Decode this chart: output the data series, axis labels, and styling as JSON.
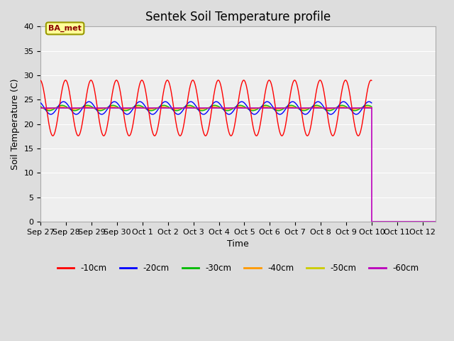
{
  "title": "Sentek Soil Temperature profile",
  "xlabel": "Time",
  "ylabel": "Soil Temperature (C)",
  "ylim": [
    0,
    40
  ],
  "annotation_text": "BA_met",
  "colors": {
    "-10cm": "#ff0000",
    "-20cm": "#0000ff",
    "-30cm": "#00bb00",
    "-40cm": "#ff9900",
    "-50cm": "#cccc00",
    "-60cm": "#bb00bb"
  },
  "legend_labels": [
    "-10cm",
    "-20cm",
    "-30cm",
    "-40cm",
    "-50cm",
    "-60cm"
  ],
  "bg_color": "#dddddd",
  "plot_bg_color": "#eeeeee",
  "title_fontsize": 12,
  "axis_fontsize": 9,
  "tick_fontsize": 8,
  "num_days": 15.5,
  "base_temp": 23.3,
  "red_amplitude": 5.7,
  "blue_amplitude": 1.3,
  "green_amplitude": 0.55,
  "orange_amplitude": 0.25,
  "yellow_amplitude": 0.08,
  "period_hours": 24,
  "dropout_day": 13.0,
  "tick_labels": [
    "Sep 27",
    "Sep 28",
    "Sep 29",
    "Sep 30",
    "Oct 1",
    "Oct 2",
    "Oct 3",
    "Oct 4",
    "Oct 5",
    "Oct 6",
    "Oct 7",
    "Oct 8",
    "Oct 9",
    "Oct 10",
    "Oct 11",
    "Oct 12"
  ],
  "yticks": [
    0,
    5,
    10,
    15,
    20,
    25,
    30,
    35,
    40
  ]
}
